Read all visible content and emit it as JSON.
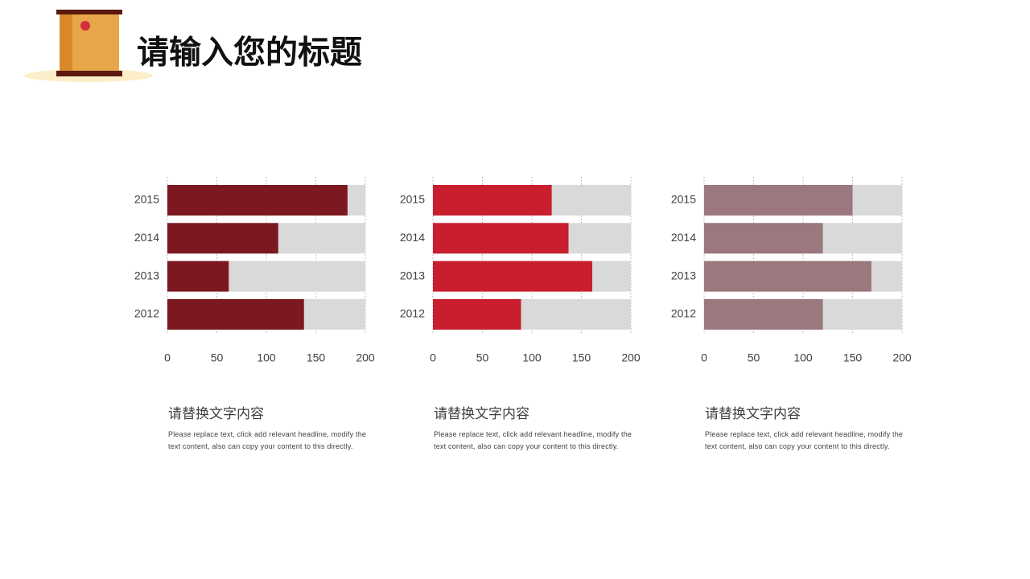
{
  "title": "请输入您的标题",
  "chart_data": [
    {
      "type": "bar",
      "orientation": "horizontal",
      "categories": [
        "2015",
        "2014",
        "2013",
        "2012"
      ],
      "values": [
        182,
        112,
        62,
        138
      ],
      "color": "#7b1820",
      "xlim": [
        0,
        200
      ],
      "xticks": [
        0,
        50,
        100,
        150,
        200
      ],
      "grid": true
    },
    {
      "type": "bar",
      "orientation": "horizontal",
      "categories": [
        "2015",
        "2014",
        "2013",
        "2012"
      ],
      "values": [
        120,
        137,
        161,
        89
      ],
      "color": "#c81e2e",
      "xlim": [
        0,
        200
      ],
      "xticks": [
        0,
        50,
        100,
        150,
        200
      ],
      "grid": true
    },
    {
      "type": "bar",
      "orientation": "horizontal",
      "categories": [
        "2015",
        "2014",
        "2013",
        "2012"
      ],
      "values": [
        150,
        120,
        169,
        120
      ],
      "color": "#9a787d",
      "xlim": [
        0,
        200
      ],
      "xticks": [
        0,
        50,
        100,
        150,
        200
      ],
      "grid": true
    }
  ],
  "captions": [
    {
      "heading": "请替换文字内容",
      "text": "Please replace text, click add relevant headline, modify the text content, also can copy your content to this directly."
    },
    {
      "heading": "请替换文字内容",
      "text": "Please replace text, click add relevant headline, modify the text content, also can copy your content to this directly."
    },
    {
      "heading": "请替换文字内容",
      "text": "Please replace text, click add relevant headline, modify the text content, also can copy your content to this directly."
    }
  ]
}
